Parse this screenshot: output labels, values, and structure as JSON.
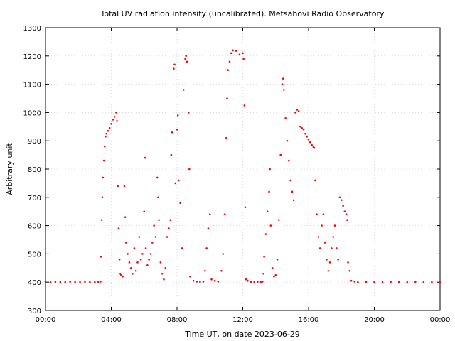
{
  "chart_data": {
    "type": "scatter",
    "title": "Total UV radiation intensity (uncalibrated). Metsähovi Radio Observatory",
    "xlabel": "Time UT, on date 2023-06-29",
    "ylabel": "Arbitrary unit",
    "xlim": [
      0,
      24
    ],
    "ylim": [
      300,
      1300
    ],
    "x_ticks": [
      0,
      4,
      8,
      12,
      16,
      20,
      24
    ],
    "x_tick_labels": [
      "00:00",
      "04:00",
      "08:00",
      "12:00",
      "16:00",
      "20:00",
      "00:00"
    ],
    "y_ticks": [
      300,
      400,
      500,
      600,
      700,
      800,
      900,
      1000,
      1100,
      1200,
      1300
    ],
    "grid": true,
    "legend": "none",
    "point_color": "#ff0000",
    "series": [
      {
        "x_unit": "hours UT",
        "points": [
          [
            0.0,
            402
          ],
          [
            0.3,
            400
          ],
          [
            0.6,
            401
          ],
          [
            0.9,
            400
          ],
          [
            1.2,
            400
          ],
          [
            1.5,
            401
          ],
          [
            1.8,
            400
          ],
          [
            2.1,
            400
          ],
          [
            2.4,
            401
          ],
          [
            2.7,
            400
          ],
          [
            3.0,
            400
          ],
          [
            3.2,
            401
          ],
          [
            3.35,
            402
          ],
          [
            3.38,
            490
          ],
          [
            3.42,
            620
          ],
          [
            3.46,
            700
          ],
          [
            3.5,
            770
          ],
          [
            3.55,
            830
          ],
          [
            3.6,
            880
          ],
          [
            3.65,
            915
          ],
          [
            3.7,
            925
          ],
          [
            3.8,
            935
          ],
          [
            3.9,
            945
          ],
          [
            4.0,
            960
          ],
          [
            4.1,
            975
          ],
          [
            4.2,
            985
          ],
          [
            4.3,
            1000
          ],
          [
            4.35,
            970
          ],
          [
            4.4,
            740
          ],
          [
            4.45,
            590
          ],
          [
            4.5,
            480
          ],
          [
            4.55,
            430
          ],
          [
            4.6,
            425
          ],
          [
            4.7,
            420
          ],
          [
            4.8,
            740
          ],
          [
            4.85,
            630
          ],
          [
            4.9,
            540
          ],
          [
            5.0,
            500
          ],
          [
            5.1,
            470
          ],
          [
            5.2,
            450
          ],
          [
            5.3,
            430
          ],
          [
            5.4,
            520
          ],
          [
            5.5,
            440
          ],
          [
            5.6,
            470
          ],
          [
            5.7,
            560
          ],
          [
            5.8,
            480
          ],
          [
            5.9,
            500
          ],
          [
            6.0,
            650
          ],
          [
            6.05,
            840
          ],
          [
            6.1,
            520
          ],
          [
            6.2,
            460
          ],
          [
            6.3,
            480
          ],
          [
            6.4,
            500
          ],
          [
            6.5,
            540
          ],
          [
            6.6,
            600
          ],
          [
            6.7,
            560
          ],
          [
            6.8,
            770
          ],
          [
            6.85,
            700
          ],
          [
            6.9,
            620
          ],
          [
            7.0,
            470
          ],
          [
            7.1,
            430
          ],
          [
            7.2,
            410
          ],
          [
            7.3,
            450
          ],
          [
            7.4,
            560
          ],
          [
            7.5,
            590
          ],
          [
            7.6,
            620
          ],
          [
            7.65,
            850
          ],
          [
            7.7,
            930
          ],
          [
            7.8,
            1155
          ],
          [
            7.85,
            1170
          ],
          [
            7.9,
            750
          ],
          [
            8.0,
            940
          ],
          [
            8.05,
            990
          ],
          [
            8.1,
            760
          ],
          [
            8.2,
            680
          ],
          [
            8.3,
            520
          ],
          [
            8.4,
            1080
          ],
          [
            8.5,
            1190
          ],
          [
            8.55,
            1200
          ],
          [
            8.6,
            1180
          ],
          [
            8.7,
            1000
          ],
          [
            8.75,
            800
          ],
          [
            8.8,
            420
          ],
          [
            9.0,
            405
          ],
          [
            9.2,
            402
          ],
          [
            9.4,
            401
          ],
          [
            9.6,
            402
          ],
          [
            9.7,
            440
          ],
          [
            9.8,
            520
          ],
          [
            9.9,
            590
          ],
          [
            10.0,
            640
          ],
          [
            10.1,
            410
          ],
          [
            10.3,
            405
          ],
          [
            10.5,
            402
          ],
          [
            10.7,
            440
          ],
          [
            10.8,
            500
          ],
          [
            10.9,
            640
          ],
          [
            11.0,
            910
          ],
          [
            11.05,
            1050
          ],
          [
            11.1,
            1150
          ],
          [
            11.2,
            1180
          ],
          [
            11.3,
            1210
          ],
          [
            11.4,
            1220
          ],
          [
            11.6,
            1218
          ],
          [
            11.8,
            1205
          ],
          [
            12.0,
            1210
          ],
          [
            12.05,
            1190
          ],
          [
            12.1,
            1025
          ],
          [
            12.15,
            665
          ],
          [
            12.2,
            410
          ],
          [
            12.3,
            405
          ],
          [
            12.5,
            401
          ],
          [
            12.7,
            400
          ],
          [
            12.9,
            401
          ],
          [
            13.1,
            400
          ],
          [
            13.2,
            402
          ],
          [
            13.25,
            430
          ],
          [
            13.3,
            490
          ],
          [
            13.4,
            570
          ],
          [
            13.5,
            650
          ],
          [
            13.6,
            720
          ],
          [
            13.65,
            800
          ],
          [
            13.7,
            600
          ],
          [
            13.8,
            450
          ],
          [
            13.9,
            420
          ],
          [
            14.0,
            425
          ],
          [
            14.1,
            480
          ],
          [
            14.2,
            620
          ],
          [
            14.3,
            850
          ],
          [
            14.4,
            1100
          ],
          [
            14.45,
            1120
          ],
          [
            14.5,
            1080
          ],
          [
            14.6,
            980
          ],
          [
            14.7,
            900
          ],
          [
            14.8,
            830
          ],
          [
            14.9,
            760
          ],
          [
            15.0,
            720
          ],
          [
            15.1,
            690
          ],
          [
            15.2,
            1000
          ],
          [
            15.3,
            1010
          ],
          [
            15.4,
            1005
          ],
          [
            15.5,
            950
          ],
          [
            15.6,
            945
          ],
          [
            15.7,
            940
          ],
          [
            15.8,
            925
          ],
          [
            15.9,
            915
          ],
          [
            16.0,
            905
          ],
          [
            16.1,
            895
          ],
          [
            16.2,
            885
          ],
          [
            16.3,
            878
          ],
          [
            16.35,
            875
          ],
          [
            16.4,
            760
          ],
          [
            16.5,
            640
          ],
          [
            16.6,
            560
          ],
          [
            16.7,
            520
          ],
          [
            16.8,
            600
          ],
          [
            16.9,
            640
          ],
          [
            17.0,
            540
          ],
          [
            17.1,
            480
          ],
          [
            17.2,
            440
          ],
          [
            17.3,
            470
          ],
          [
            17.4,
            520
          ],
          [
            17.5,
            560
          ],
          [
            17.6,
            600
          ],
          [
            17.7,
            520
          ],
          [
            17.8,
            480
          ],
          [
            17.9,
            700
          ],
          [
            18.0,
            690
          ],
          [
            18.1,
            670
          ],
          [
            18.2,
            650
          ],
          [
            18.3,
            640
          ],
          [
            18.35,
            620
          ],
          [
            18.4,
            470
          ],
          [
            18.5,
            440
          ],
          [
            18.6,
            405
          ],
          [
            18.8,
            402
          ],
          [
            19.0,
            400
          ],
          [
            19.5,
            401
          ],
          [
            20.0,
            400
          ],
          [
            20.5,
            400
          ],
          [
            21.0,
            401
          ],
          [
            21.5,
            400
          ],
          [
            22.0,
            400
          ],
          [
            22.5,
            401
          ],
          [
            23.0,
            400
          ],
          [
            23.5,
            400
          ],
          [
            24.0,
            400
          ]
        ]
      }
    ]
  }
}
